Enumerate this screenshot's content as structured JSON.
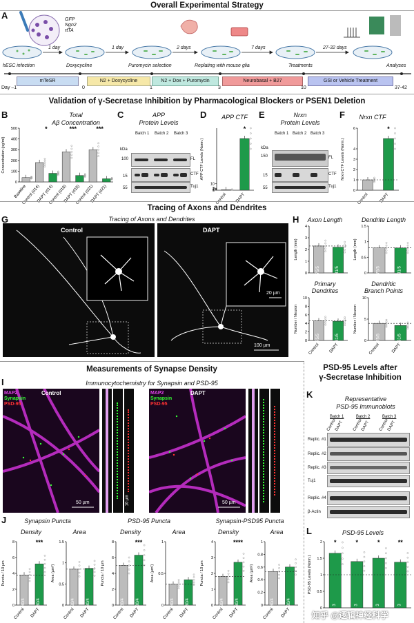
{
  "section_titles": {
    "strategy": "Overall Experimental Strategy",
    "validation": "Validation of γ-Secretase Inhibition by Pharmacological Blockers or PSEN1 Deletion",
    "tracing": "Tracing of Axons and Dendrites",
    "synapse": "Measurements of Synapse Density",
    "psd95": "PSD-95 Levels after",
    "psd95_2": "γ-Secretase Inhibition"
  },
  "panel_letters": {
    "A": "A",
    "B": "B",
    "C": "C",
    "D": "D",
    "E": "E",
    "F": "F",
    "G": "G",
    "H": "H",
    "I": "I",
    "J": "J",
    "K": "K",
    "L": "L"
  },
  "panelA": {
    "virus_legend": [
      "GFP",
      "Ngn2",
      "rtTA"
    ],
    "steps": [
      "hESC infection",
      "Doxycycline",
      "Puromycin selection",
      "Replating with mouse glia",
      "Treatments",
      "Analyses"
    ],
    "intervals": [
      "1 day",
      "1 day",
      "2 days",
      "7 days",
      "27-32 days"
    ],
    "days": [
      "Day –1",
      "0",
      "1",
      "3",
      "10",
      "37-42"
    ],
    "media": [
      "mTeSR",
      "N2 + Doxycycline",
      "N2 + Dox + Puromycin",
      "Neurobasal + B27",
      "GSI or Vehicle Treatment"
    ],
    "media_colors": [
      "#c8dcf2",
      "#f6e8a8",
      "#bfe8df",
      "#f09a9a",
      "#b9c3f0"
    ]
  },
  "panelB": {
    "title": "Total",
    "title2": "Aβ Concentration",
    "ylabel": "Concentration (pg/ml)",
    "sig": [
      "*",
      "***",
      "***"
    ]
  },
  "panelC": {
    "title": "APP",
    "title2": "Protein Levels",
    "batches": [
      "Batch 1",
      "Batch 2",
      "Batch 3"
    ],
    "lanes": [
      "Control",
      "DAPT"
    ],
    "kda": "kDa",
    "kda_marks": [
      "100",
      "15",
      "55"
    ],
    "bands": [
      "FL",
      "CTF",
      "Tuj1"
    ]
  },
  "panelD": {
    "title": "APP CTF",
    "ylabel": "APP CTF Levels (Norm.)",
    "sig": "*",
    "xcats": [
      "Control",
      "DAPT"
    ]
  },
  "panelE": {
    "title": "Nrxn",
    "title2": "Protein Levels",
    "batches": [
      "Batch 1",
      "Batch 2",
      "Batch 3"
    ],
    "lanes": [
      "Control",
      "DAPT"
    ],
    "kda": "kDa",
    "kda_marks": [
      "150",
      "15",
      "55"
    ],
    "bands": [
      "FL",
      "CTF",
      "Tuj1"
    ]
  },
  "panelF": {
    "title": "Nrxn CTF",
    "ylabel": "Nrxn CTF Levels (Norm.)",
    "sig": "*",
    "xcats": [
      "Control",
      "DAPT"
    ]
  },
  "panelG": {
    "title": "Tracing of Axons and Dendrites",
    "labels": [
      "Control",
      "DAPT"
    ],
    "scale_small": "20 µm",
    "scale_big": "100 µm"
  },
  "panelH": {
    "plots": [
      {
        "title": "Axon Length",
        "ylabel": "Length (mm)"
      },
      {
        "title": "Dendrite Length",
        "ylabel": "Length (mm)"
      },
      {
        "title": "Primary",
        "title2": "Dendrites",
        "ylabel": "Number / Neuron"
      },
      {
        "title": "Dendritic",
        "title2": "Branch Points",
        "ylabel": "Number / Neuron"
      }
    ],
    "n_labels": [
      "75/5",
      "81/5"
    ],
    "xcats": [
      "Control",
      "DAPT"
    ]
  },
  "panelI": {
    "title": "Immunocytochemistry for Synapsin and PSD-95",
    "stains": [
      "MAP2",
      "Synapsin",
      "PSD-95"
    ],
    "labels": [
      "Control",
      "DAPT"
    ],
    "scale_big": "50 µm",
    "scale_small": "10 µm"
  },
  "panelJ": {
    "groups": [
      "Synapsin Puncta",
      "PSD-95 Puncta",
      "Synapsin-PSD95 Puncta"
    ],
    "metrics": [
      "Density",
      "Area"
    ],
    "ylabels": [
      "Puncta / 10 µm",
      "Area (µm²)"
    ],
    "n_label": "30/4",
    "sig": [
      "***",
      "***",
      "****"
    ],
    "xcats": [
      "Control",
      "DAPT"
    ]
  },
  "panelK": {
    "title": "Representative",
    "title2": "PSD-95 Immunoblots",
    "batches": [
      "Batch 1",
      "Batch 2",
      "Batch 3"
    ],
    "lanes": [
      "Control",
      "DAPT"
    ],
    "rows": [
      "Replic. #1",
      "Replic. #2",
      "Replic. #3",
      "Tuj1",
      "Replic. #4",
      "β-Actin"
    ]
  },
  "panelL": {
    "title": "PSD-95 Levels",
    "ylabel": "PSD-95 Levels (Norm.)",
    "sig": [
      "*",
      "*",
      "*",
      "**"
    ],
    "bar_labels": [
      "3",
      "3",
      "3",
      "3"
    ]
  },
  "chart_data": [
    {
      "type": "bar",
      "panel": "B",
      "categories": [
        "Baseline",
        "Control (d14)",
        "DAPT (d14)",
        "Control (d18)",
        "DAPT (d18)",
        "Control (d21)",
        "DAPT (d21)"
      ],
      "values": [
        40,
        180,
        80,
        280,
        60,
        300,
        30
      ],
      "ylim": [
        0,
        500
      ],
      "yticks": [
        0,
        100,
        200,
        300,
        400,
        500
      ]
    },
    {
      "type": "bar",
      "panel": "D",
      "categories": [
        "Control",
        "DAPT"
      ],
      "values": [
        1,
        80
      ],
      "yticks": [
        0,
        1,
        2,
        3,
        10,
        100,
        150
      ]
    },
    {
      "type": "bar",
      "panel": "F",
      "categories": [
        "Control",
        "DAPT"
      ],
      "values": [
        1,
        5
      ],
      "yticks": [
        0,
        1,
        2,
        3,
        4,
        6,
        8,
        10
      ]
    },
    {
      "type": "bar",
      "panel": "H1",
      "categories": [
        "Control",
        "DAPT"
      ],
      "values": [
        2.3,
        2.2
      ],
      "ylim": [
        0,
        4
      ],
      "yticks": [
        0,
        1,
        2,
        3,
        4
      ]
    },
    {
      "type": "bar",
      "panel": "H2",
      "categories": [
        "Control",
        "DAPT"
      ],
      "values": [
        0.8,
        0.8
      ],
      "ylim": [
        0,
        1.5
      ],
      "yticks": [
        0,
        0.5,
        1.0,
        1.5
      ]
    },
    {
      "type": "bar",
      "panel": "H3",
      "categories": [
        "Control",
        "DAPT"
      ],
      "values": [
        4.6,
        4.5
      ],
      "ylim": [
        0,
        10
      ],
      "yticks": [
        0,
        2,
        4,
        6,
        8,
        10
      ]
    },
    {
      "type": "bar",
      "panel": "H4",
      "categories": [
        "Control",
        "DAPT"
      ],
      "values": [
        4,
        3.5
      ],
      "ylim": [
        0,
        10
      ],
      "yticks": [
        0,
        5,
        10
      ]
    },
    {
      "type": "bar",
      "panel": "J1",
      "categories": [
        "Control",
        "DAPT"
      ],
      "values": [
        3.8,
        5.2
      ],
      "ylim": [
        0,
        8
      ],
      "yticks": [
        0,
        2,
        4,
        6,
        8
      ]
    },
    {
      "type": "bar",
      "panel": "J2",
      "categories": [
        "Control",
        "DAPT"
      ],
      "values": [
        0.85,
        0.87
      ],
      "ylim": [
        0,
        1.5
      ],
      "yticks": [
        0,
        0.5,
        1.0,
        1.5
      ]
    },
    {
      "type": "bar",
      "panel": "J3",
      "categories": [
        "Control",
        "DAPT"
      ],
      "values": [
        5,
        6.3
      ],
      "ylim": [
        0,
        8
      ],
      "yticks": [
        0,
        2,
        4,
        6,
        8
      ]
    },
    {
      "type": "bar",
      "panel": "J4",
      "categories": [
        "Control",
        "DAPT"
      ],
      "values": [
        0.33,
        0.4
      ],
      "ylim": [
        0,
        1.0
      ],
      "yticks": [
        0,
        0.5,
        1.0
      ]
    },
    {
      "type": "bar",
      "panel": "J5",
      "categories": [
        "Control",
        "DAPT"
      ],
      "values": [
        1.8,
        2.7
      ],
      "ylim": [
        0,
        4
      ],
      "yticks": [
        0,
        1,
        2,
        3,
        4
      ]
    },
    {
      "type": "bar",
      "panel": "J6",
      "categories": [
        "Control",
        "DAPT"
      ],
      "values": [
        0.53,
        0.6
      ],
      "ylim": [
        0,
        1.0
      ],
      "yticks": [
        0,
        0.2,
        0.4,
        0.6,
        0.8,
        1.0
      ]
    },
    {
      "type": "bar",
      "panel": "L",
      "categories": [
        "Replic. #1",
        "Replic. #2",
        "Replic. #3",
        "Replic. #4"
      ],
      "values": [
        1.65,
        1.4,
        1.5,
        1.38
      ],
      "ylim": [
        0,
        2.0
      ],
      "yticks": [
        0,
        0.5,
        1.0,
        1.5,
        2.0
      ]
    }
  ],
  "watermark": "知乎 @逻辑神经科学"
}
